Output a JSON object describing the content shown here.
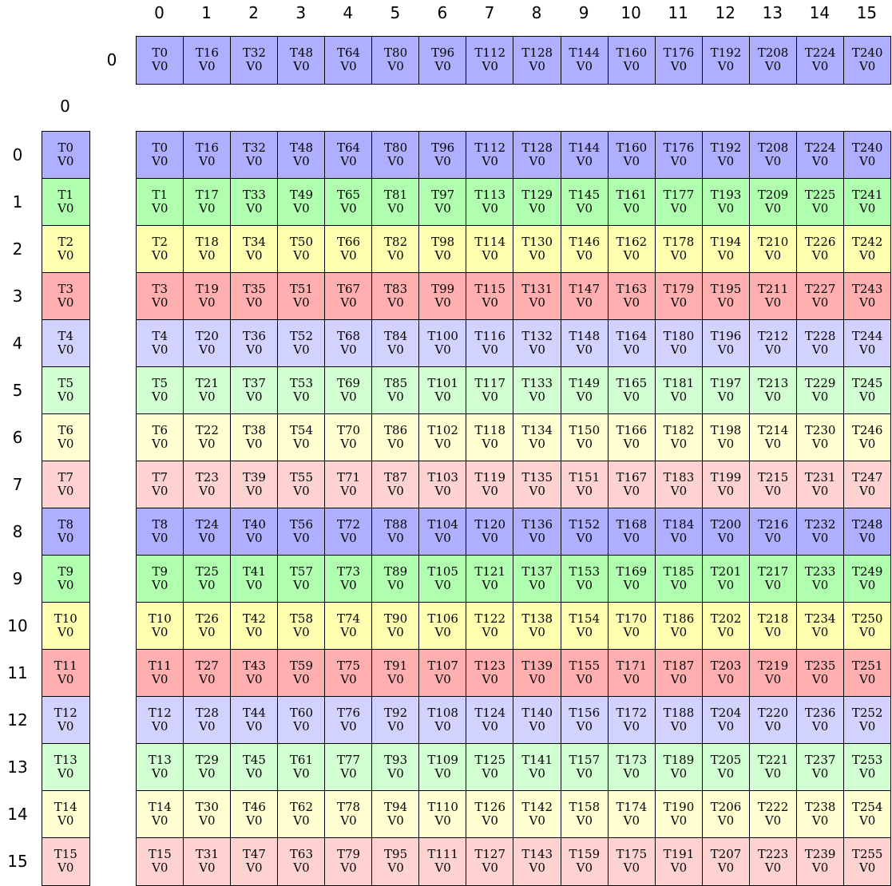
{
  "row_colors": [
    "#afafff",
    "#afffaf",
    "#ffffaf",
    "#ffafaf",
    "#d2d2ff",
    "#d2ffd2",
    "#ffffd2",
    "#ffd2d2"
  ],
  "col_indices": [
    "0",
    "1",
    "2",
    "3",
    "4",
    "5",
    "6",
    "7",
    "8",
    "9",
    "10",
    "11",
    "12",
    "13",
    "14",
    "15"
  ],
  "row_indices": [
    "0",
    "1",
    "2",
    "3",
    "4",
    "5",
    "6",
    "7",
    "8",
    "9",
    "10",
    "11",
    "12",
    "13",
    "14",
    "15"
  ],
  "top_strip": {
    "row_index": "0",
    "threads": [
      "T0",
      "T16",
      "T32",
      "T48",
      "T64",
      "T80",
      "T96",
      "T112",
      "T128",
      "T144",
      "T160",
      "T176",
      "T192",
      "T208",
      "T224",
      "T240"
    ],
    "values": [
      "V0",
      "V0",
      "V0",
      "V0",
      "V0",
      "V0",
      "V0",
      "V0",
      "V0",
      "V0",
      "V0",
      "V0",
      "V0",
      "V0",
      "V0",
      "V0"
    ]
  },
  "left_strip": {
    "col_index": "0",
    "threads": [
      "T0",
      "T1",
      "T2",
      "T3",
      "T4",
      "T5",
      "T6",
      "T7",
      "T8",
      "T9",
      "T10",
      "T11",
      "T12",
      "T13",
      "T14",
      "T15"
    ],
    "values": [
      "V0",
      "V0",
      "V0",
      "V0",
      "V0",
      "V0",
      "V0",
      "V0",
      "V0",
      "V0",
      "V0",
      "V0",
      "V0",
      "V0",
      "V0",
      "V0"
    ]
  },
  "grid": {
    "threads": [
      [
        "T0",
        "T16",
        "T32",
        "T48",
        "T64",
        "T80",
        "T96",
        "T112",
        "T128",
        "T144",
        "T160",
        "T176",
        "T192",
        "T208",
        "T224",
        "T240"
      ],
      [
        "T1",
        "T17",
        "T33",
        "T49",
        "T65",
        "T81",
        "T97",
        "T113",
        "T129",
        "T145",
        "T161",
        "T177",
        "T193",
        "T209",
        "T225",
        "T241"
      ],
      [
        "T2",
        "T18",
        "T34",
        "T50",
        "T66",
        "T82",
        "T98",
        "T114",
        "T130",
        "T146",
        "T162",
        "T178",
        "T194",
        "T210",
        "T226",
        "T242"
      ],
      [
        "T3",
        "T19",
        "T35",
        "T51",
        "T67",
        "T83",
        "T99",
        "T115",
        "T131",
        "T147",
        "T163",
        "T179",
        "T195",
        "T211",
        "T227",
        "T243"
      ],
      [
        "T4",
        "T20",
        "T36",
        "T52",
        "T68",
        "T84",
        "T100",
        "T116",
        "T132",
        "T148",
        "T164",
        "T180",
        "T196",
        "T212",
        "T228",
        "T244"
      ],
      [
        "T5",
        "T21",
        "T37",
        "T53",
        "T69",
        "T85",
        "T101",
        "T117",
        "T133",
        "T149",
        "T165",
        "T181",
        "T197",
        "T213",
        "T229",
        "T245"
      ],
      [
        "T6",
        "T22",
        "T38",
        "T54",
        "T70",
        "T86",
        "T102",
        "T118",
        "T134",
        "T150",
        "T166",
        "T182",
        "T198",
        "T214",
        "T230",
        "T246"
      ],
      [
        "T7",
        "T23",
        "T39",
        "T55",
        "T71",
        "T87",
        "T103",
        "T119",
        "T135",
        "T151",
        "T167",
        "T183",
        "T199",
        "T215",
        "T231",
        "T247"
      ],
      [
        "T8",
        "T24",
        "T40",
        "T56",
        "T72",
        "T88",
        "T104",
        "T120",
        "T136",
        "T152",
        "T168",
        "T184",
        "T200",
        "T216",
        "T232",
        "T248"
      ],
      [
        "T9",
        "T25",
        "T41",
        "T57",
        "T73",
        "T89",
        "T105",
        "T121",
        "T137",
        "T153",
        "T169",
        "T185",
        "T201",
        "T217",
        "T233",
        "T249"
      ],
      [
        "T10",
        "T26",
        "T42",
        "T58",
        "T74",
        "T90",
        "T106",
        "T122",
        "T138",
        "T154",
        "T170",
        "T186",
        "T202",
        "T218",
        "T234",
        "T250"
      ],
      [
        "T11",
        "T27",
        "T43",
        "T59",
        "T75",
        "T91",
        "T107",
        "T123",
        "T139",
        "T155",
        "T171",
        "T187",
        "T203",
        "T219",
        "T235",
        "T251"
      ],
      [
        "T12",
        "T28",
        "T44",
        "T60",
        "T76",
        "T92",
        "T108",
        "T124",
        "T140",
        "T156",
        "T172",
        "T188",
        "T204",
        "T220",
        "T236",
        "T252"
      ],
      [
        "T13",
        "T29",
        "T45",
        "T61",
        "T77",
        "T93",
        "T109",
        "T125",
        "T141",
        "T157",
        "T173",
        "T189",
        "T205",
        "T221",
        "T237",
        "T253"
      ],
      [
        "T14",
        "T30",
        "T46",
        "T62",
        "T78",
        "T94",
        "T110",
        "T126",
        "T142",
        "T158",
        "T174",
        "T190",
        "T206",
        "T222",
        "T238",
        "T254"
      ],
      [
        "T15",
        "T31",
        "T47",
        "T63",
        "T79",
        "T95",
        "T111",
        "T127",
        "T143",
        "T159",
        "T175",
        "T191",
        "T207",
        "T223",
        "T239",
        "T255"
      ]
    ],
    "value": "V0"
  }
}
